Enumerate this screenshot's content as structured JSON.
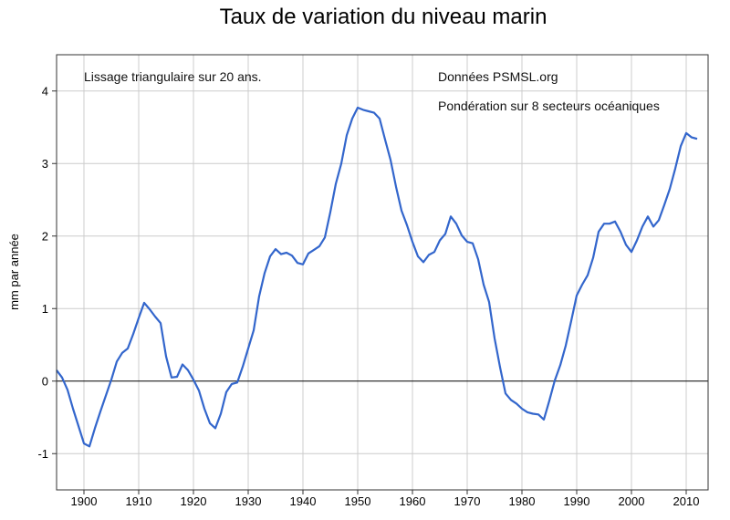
{
  "chart_data": {
    "type": "line",
    "title": "Taux de variation du niveau marin",
    "xlabel": "",
    "ylabel": "mm par année",
    "xlim": [
      1895,
      2014
    ],
    "ylim": [
      -1.5,
      4.5
    ],
    "x_ticks": [
      1900,
      1910,
      1920,
      1930,
      1940,
      1950,
      1960,
      1970,
      1980,
      1990,
      2000,
      2010
    ],
    "y_ticks": [
      -1,
      0,
      1,
      2,
      3,
      4
    ],
    "y_tick_labels": [
      "-1",
      "0",
      "1",
      "2",
      "3",
      "4"
    ],
    "grid": true,
    "zero_line": true,
    "annotations": {
      "smoothing": "Lissage triangulaire sur 20 ans.",
      "source": "Données PSMSL.org",
      "weighting": "Pondération sur 8 secteurs océaniques"
    },
    "series": [
      {
        "color": "#3366cc",
        "x": [
          1895,
          1896,
          1897,
          1898,
          1899,
          1900,
          1901,
          1902,
          1903,
          1904,
          1905,
          1906,
          1907,
          1908,
          1909,
          1910,
          1911,
          1912,
          1913,
          1914,
          1915,
          1916,
          1917,
          1918,
          1919,
          1920,
          1921,
          1922,
          1923,
          1924,
          1925,
          1926,
          1927,
          1928,
          1929,
          1930,
          1931,
          1932,
          1933,
          1934,
          1935,
          1936,
          1937,
          1938,
          1939,
          1940,
          1941,
          1942,
          1943,
          1944,
          1945,
          1946,
          1947,
          1948,
          1949,
          1950,
          1951,
          1952,
          1953,
          1954,
          1955,
          1956,
          1957,
          1958,
          1959,
          1960,
          1961,
          1962,
          1963,
          1964,
          1965,
          1966,
          1967,
          1968,
          1969,
          1970,
          1971,
          1972,
          1973,
          1974,
          1975,
          1976,
          1977,
          1978,
          1979,
          1980,
          1981,
          1982,
          1983,
          1984,
          1985,
          1986,
          1987,
          1988,
          1989,
          1990,
          1991,
          1992,
          1993,
          1994,
          1995,
          1996,
          1997,
          1998,
          1999,
          2000,
          2001,
          2002,
          2003,
          2004,
          2005,
          2006,
          2007,
          2008,
          2009,
          2010,
          2011,
          2012
        ],
        "y": [
          0.15,
          0.05,
          -0.12,
          -0.38,
          -0.62,
          -0.86,
          -0.9,
          -0.65,
          -0.42,
          -0.2,
          0.02,
          0.27,
          0.39,
          0.45,
          0.65,
          0.87,
          1.08,
          0.99,
          0.89,
          0.8,
          0.34,
          0.05,
          0.06,
          0.23,
          0.15,
          0.02,
          -0.13,
          -0.38,
          -0.58,
          -0.65,
          -0.45,
          -0.15,
          -0.04,
          -0.02,
          0.2,
          0.45,
          0.7,
          1.17,
          1.49,
          1.72,
          1.82,
          1.75,
          1.77,
          1.73,
          1.63,
          1.61,
          1.76,
          1.81,
          1.86,
          1.98,
          2.33,
          2.72,
          3.0,
          3.39,
          3.62,
          3.77,
          3.74,
          3.72,
          3.7,
          3.62,
          3.33,
          3.05,
          2.68,
          2.35,
          2.15,
          1.92,
          1.72,
          1.64,
          1.74,
          1.78,
          1.94,
          2.03,
          2.27,
          2.17,
          2.01,
          1.92,
          1.9,
          1.68,
          1.33,
          1.09,
          0.59,
          0.19,
          -0.17,
          -0.26,
          -0.31,
          -0.38,
          -0.43,
          -0.45,
          -0.46,
          -0.53,
          -0.27,
          0.01,
          0.22,
          0.49,
          0.83,
          1.18,
          1.33,
          1.46,
          1.7,
          2.06,
          2.17,
          2.17,
          2.2,
          2.06,
          1.88,
          1.78,
          1.94,
          2.13,
          2.27,
          2.13,
          2.22,
          2.43,
          2.65,
          2.93,
          3.24,
          3.42,
          3.36,
          3.34
        ]
      }
    ]
  }
}
